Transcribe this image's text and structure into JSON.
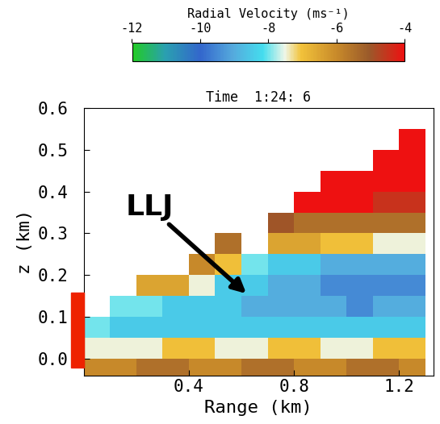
{
  "chart_data": {
    "type": "heatmap",
    "title": "Time  1:24: 6",
    "x_label": "Range (km)",
    "y_label": "z (km)",
    "xlim": [
      0,
      1.33
    ],
    "ylim": [
      -0.04,
      0.6
    ],
    "xticks": [
      0.4,
      0.8,
      1.2
    ],
    "yticks": [
      0.0,
      0.1,
      0.2,
      0.3,
      0.4,
      0.5,
      0.6
    ],
    "x_edges": [
      0.0,
      0.1,
      0.2,
      0.3,
      0.4,
      0.5,
      0.6,
      0.7,
      0.8,
      0.9,
      1.0,
      1.1,
      1.2,
      1.3
    ],
    "z_edges": [
      -0.04,
      0.0,
      0.05,
      0.1,
      0.15,
      0.2,
      0.25,
      0.3,
      0.35,
      0.4,
      0.45,
      0.5,
      0.55,
      0.6
    ],
    "cells": [
      [
        -6,
        -6,
        -5.5,
        -5.5,
        -6,
        -6,
        -5.5,
        -5.5,
        -6,
        -6,
        -5.5,
        -5.5,
        -6
      ],
      [
        -7.5,
        -7.5,
        -7.5,
        -7,
        -7,
        -7.5,
        -7.5,
        -7,
        -7,
        -7.5,
        -7.5,
        -7,
        -7
      ],
      [
        -8,
        -8.5,
        -8.5,
        -8.5,
        -8.5,
        -8.5,
        -8.5,
        -8.5,
        -8.5,
        -8.5,
        -8.5,
        -8.5,
        -8.5
      ],
      [
        null,
        -8,
        -8,
        -8.5,
        -8.5,
        -8.5,
        -9,
        -9,
        -9,
        -9,
        -9.5,
        -9,
        -9
      ],
      [
        null,
        null,
        -6.5,
        -6.5,
        -7.5,
        -8.5,
        -8.5,
        -9,
        -9,
        -9.5,
        -9.5,
        -9.5,
        -9.5
      ],
      [
        null,
        null,
        null,
        null,
        -6,
        -7,
        -8,
        -8.5,
        -8.5,
        -9,
        -9,
        -9,
        -9
      ],
      [
        null,
        null,
        null,
        null,
        null,
        -5.5,
        null,
        -6.5,
        -6.5,
        -7,
        -7,
        -7.5,
        -7.5
      ],
      [
        null,
        null,
        null,
        null,
        null,
        null,
        null,
        -5,
        -5.5,
        -5.5,
        -5.5,
        -5.5,
        -5.5
      ],
      [
        null,
        null,
        null,
        null,
        null,
        null,
        null,
        null,
        -4,
        -4,
        -4,
        -4.5,
        -4.5
      ],
      [
        null,
        null,
        null,
        null,
        null,
        null,
        null,
        null,
        null,
        -4,
        -4,
        -4,
        -4
      ],
      [
        null,
        null,
        null,
        null,
        null,
        null,
        null,
        null,
        null,
        null,
        null,
        -4,
        -4
      ],
      [
        null,
        null,
        null,
        null,
        null,
        null,
        null,
        null,
        null,
        null,
        null,
        null,
        -4
      ],
      [
        null,
        null,
        null,
        null,
        null,
        null,
        null,
        null,
        null,
        null,
        null,
        null,
        null
      ]
    ],
    "colorbar": {
      "label": "Radial Velocity (ms⁻¹)",
      "range": [
        -12,
        -4
      ],
      "ticks": [
        -12,
        -10,
        -8,
        -6,
        -4
      ]
    },
    "annotation": "LLJ"
  }
}
